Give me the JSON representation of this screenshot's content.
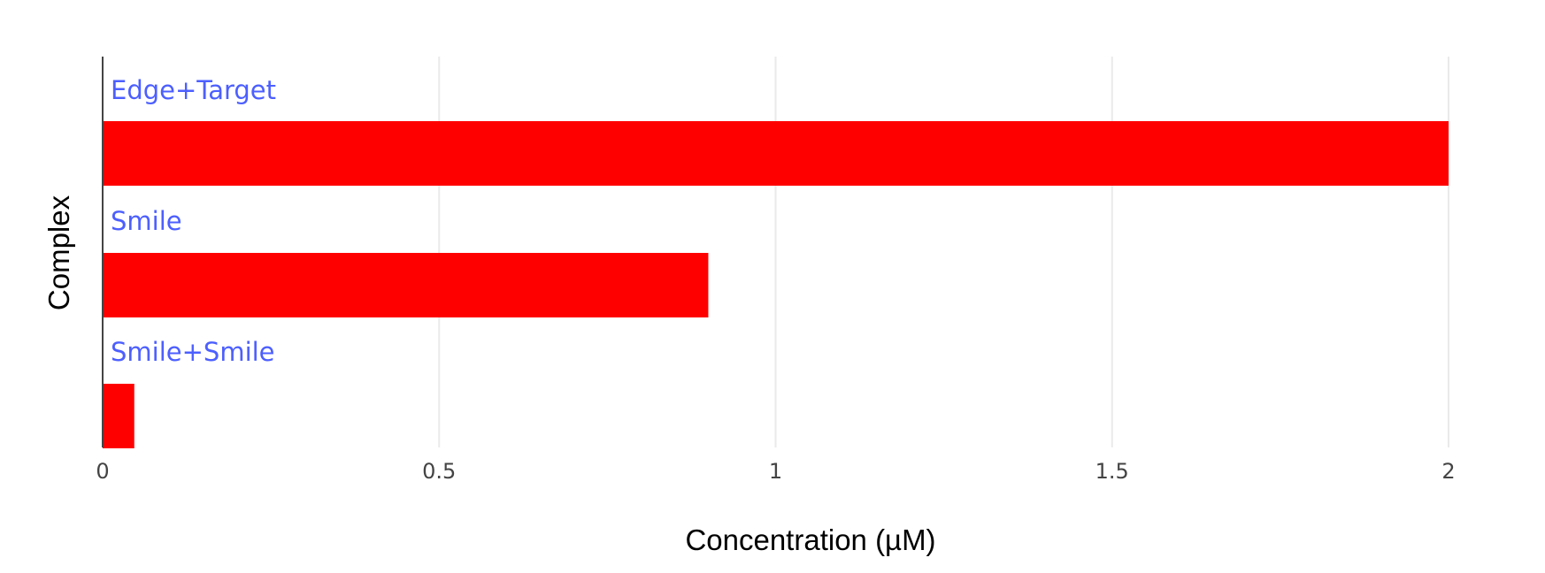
{
  "chart_data": {
    "type": "bar",
    "orientation": "horizontal",
    "categories": [
      "Edge+Target",
      "Smile",
      "Smile+Smile"
    ],
    "values": [
      2.0,
      0.9,
      0.047
    ],
    "xlabel": "Concentration (µM)",
    "ylabel": "Complex",
    "xlim": [
      0,
      2
    ],
    "xticks": [
      0,
      0.5,
      1,
      1.5,
      2
    ],
    "xtick_labels": [
      "0",
      "0.5",
      "1",
      "1.5",
      "2"
    ],
    "grid": "vertical",
    "bar_color": "#ff0000",
    "label_color": "#4c5fff",
    "legend": "none"
  }
}
